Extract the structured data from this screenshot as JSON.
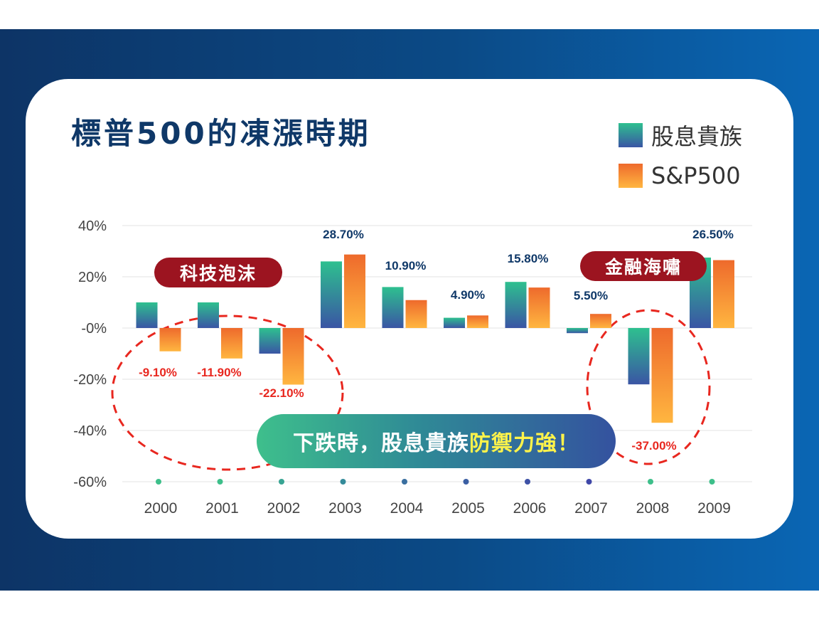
{
  "title": "標普500的凍漲時期",
  "legend": [
    {
      "name": "股息貴族",
      "color_top": "#2ec08f",
      "color_bottom": "#3a55a4"
    },
    {
      "name": "S&P500",
      "color_top": "#ee6a2c",
      "color_bottom": "#ffb640"
    }
  ],
  "annotations": {
    "tech_bubble": "科技泡沫",
    "financial_tsunami": "金融海嘯",
    "callout_main": "下跌時，股息貴族",
    "callout_highlight": "防禦力強！"
  },
  "colors": {
    "title": "#0f3868",
    "negative_label": "#e8271f",
    "positive_label": "#0f3868",
    "pill_red": "#9c1420",
    "dashed_circle": "#e8271f"
  },
  "chart_data": {
    "type": "bar",
    "categories": [
      "2000",
      "2001",
      "2002",
      "2003",
      "2004",
      "2005",
      "2006",
      "2007",
      "2008",
      "2009"
    ],
    "series": [
      {
        "name": "股息貴族",
        "values": [
          10,
          10,
          -10,
          26,
          16,
          4,
          18,
          -2,
          -22,
          27.5
        ]
      },
      {
        "name": "S&P500",
        "values": [
          -9.1,
          -11.9,
          -22.1,
          28.7,
          10.9,
          4.9,
          15.8,
          5.5,
          -37.0,
          26.5
        ]
      }
    ],
    "data_labels": [
      "-9.10%",
      "-11.90%",
      "-22.10%",
      "28.70%",
      "10.90%",
      "4.90%",
      "15.80%",
      "5.50%",
      "-37.00%",
      "26.50%"
    ],
    "y_ticks": [
      "40%",
      "20%",
      "-0%",
      "-20%",
      "-40%",
      "-60%"
    ],
    "y_tick_values": [
      40,
      20,
      0,
      -20,
      -40,
      -60
    ],
    "ylim": [
      -60,
      40
    ],
    "grid": true,
    "legend_position": "top-right",
    "category_dot_colors": [
      "#3dbf8a",
      "#3dbf8a",
      "#37a493",
      "#358b9a",
      "#3a6fa0",
      "#3b5fa3",
      "#3e51a6",
      "#3f47a8",
      "#3dbf8a",
      "#3dbf8a"
    ]
  }
}
